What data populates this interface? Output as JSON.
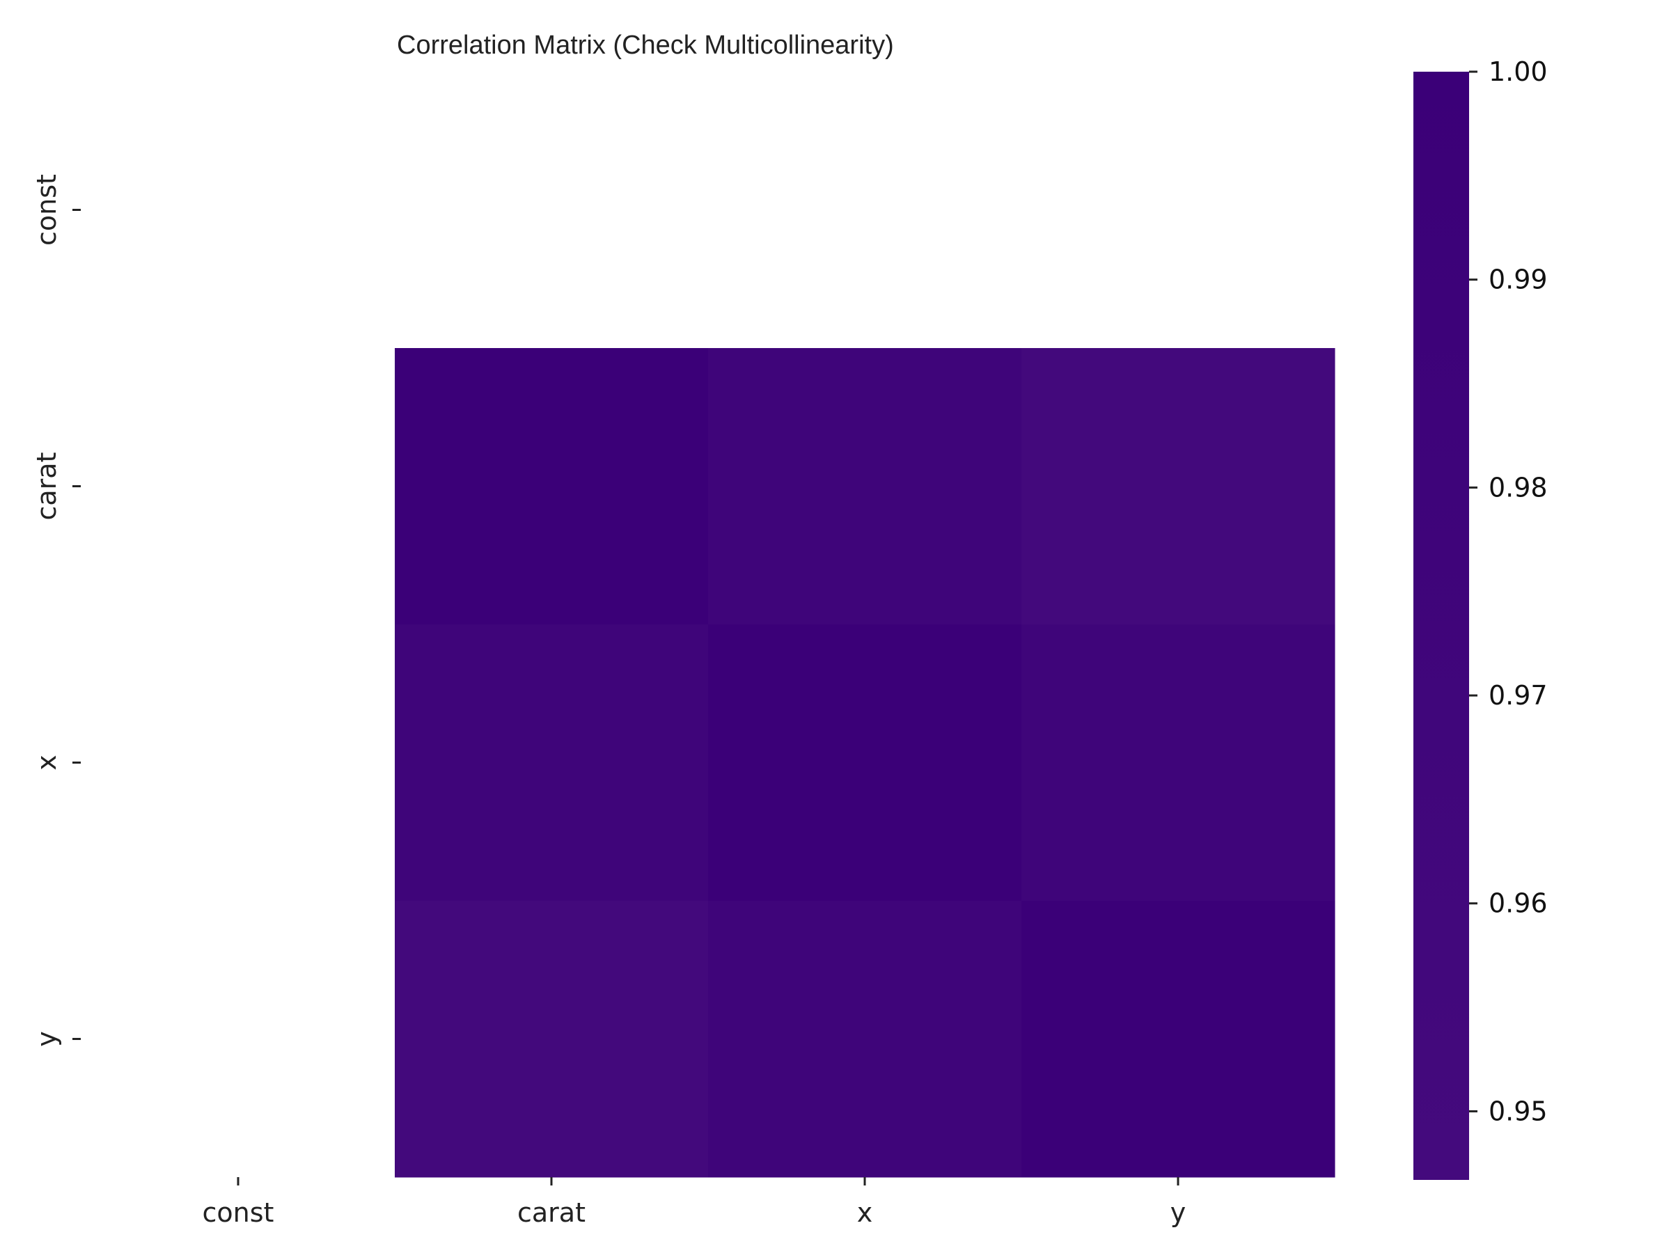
{
  "chart_data": {
    "type": "heatmap",
    "title": "Correlation Matrix (Check Multicollinearity)",
    "x_categories": [
      "const",
      "carat",
      "x",
      "y"
    ],
    "y_categories": [
      "const",
      "carat",
      "x",
      "y"
    ],
    "values": [
      [
        null,
        null,
        null,
        null
      ],
      [
        null,
        1.0,
        0.975,
        0.953
      ],
      [
        null,
        0.975,
        1.0,
        0.975
      ],
      [
        null,
        0.953,
        0.975,
        1.0
      ]
    ],
    "colorbar": {
      "min": 0.9467,
      "max": 1.0,
      "ticks": [
        0.95,
        0.96,
        0.97,
        0.98,
        0.99,
        1.0
      ],
      "tick_labels": [
        "0.95",
        "0.96",
        "0.97",
        "0.98",
        "0.99",
        "1.00"
      ],
      "color_low": "#440a7d",
      "color_high": "#3b0078"
    },
    "xlabel": "",
    "ylabel": ""
  }
}
